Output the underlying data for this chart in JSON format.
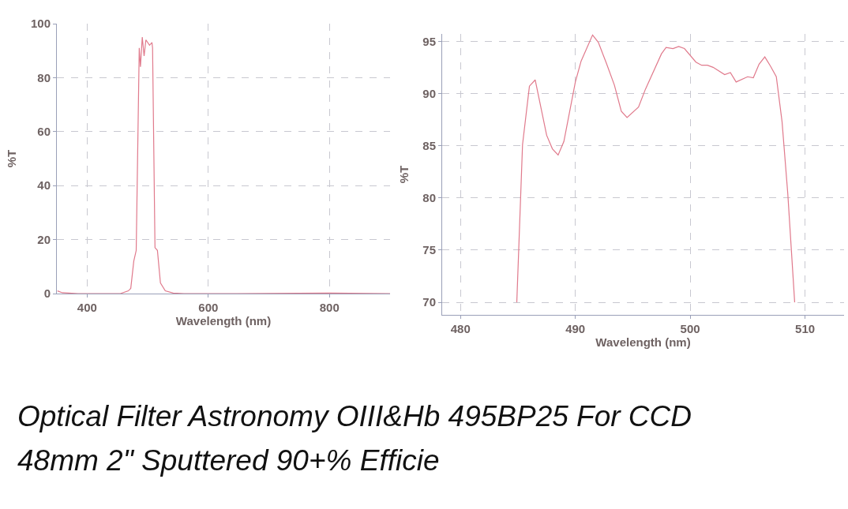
{
  "chart_data": [
    {
      "type": "line",
      "xlabel": "Wavelength (nm)",
      "ylabel": "%T",
      "xlim": [
        350,
        900
      ],
      "ylim": [
        0,
        100
      ],
      "xticks": [
        400,
        600,
        800
      ],
      "yticks": [
        0,
        20,
        40,
        60,
        80,
        100
      ],
      "grid": true,
      "x": [
        351,
        359,
        385,
        455,
        468,
        472,
        477,
        481,
        486,
        488,
        491,
        494,
        497,
        503,
        507,
        508,
        512,
        516,
        521,
        529,
        542,
        560,
        647,
        800,
        900
      ],
      "series": [
        {
          "color": "#e07a8c",
          "values": [
            1.0,
            0.3,
            0,
            0,
            1.0,
            1.9,
            12,
            16,
            91,
            84,
            95,
            88,
            94,
            92,
            93,
            91,
            17,
            16,
            3.9,
            1,
            0.2,
            0,
            0,
            0.2,
            0
          ]
        }
      ],
      "annotations": [
        "Optical Filter Astronomy OIII&Hb 495BP25 For CCD 48mm 2\" Sputtered 90+% Efficie"
      ]
    },
    {
      "type": "line",
      "xlabel": "Wavelength (nm)",
      "ylabel": "%T",
      "xlim": [
        478.4,
        513.4
      ],
      "ylim": [
        68.8,
        95.7
      ],
      "xticks": [
        480,
        490,
        500,
        510
      ],
      "yticks": [
        70,
        75,
        80,
        85,
        90,
        95
      ],
      "grid": true,
      "x": [
        484.9,
        485.4,
        486.0,
        486.5,
        487.5,
        488.0,
        488.5,
        489.0,
        490.0,
        490.5,
        491.5,
        492.0,
        492.7,
        493.4,
        494.0,
        494.5,
        495.5,
        496.1,
        497.5,
        497.9,
        498.5,
        499.0,
        499.5,
        500.5,
        501.0,
        501.5,
        502.0,
        503.0,
        503.5,
        504.0,
        505.0,
        505.5,
        506.0,
        506.5,
        507.0,
        507.5,
        508.0,
        508.5,
        509.1
      ],
      "series": [
        {
          "color": "#e07a8c",
          "values": [
            70,
            85.1,
            90.7,
            91.3,
            86.0,
            84.7,
            84.1,
            85.4,
            91.1,
            93.1,
            95.6,
            94.9,
            92.9,
            90.8,
            88.3,
            87.7,
            88.7,
            90.4,
            93.8,
            94.4,
            94.3,
            94.5,
            94.3,
            93.0,
            92.7,
            92.7,
            92.5,
            91.8,
            92.0,
            91.1,
            91.6,
            91.5,
            92.8,
            93.5,
            92.6,
            91.6,
            87.3,
            80.4,
            70
          ]
        }
      ]
    }
  ]
}
